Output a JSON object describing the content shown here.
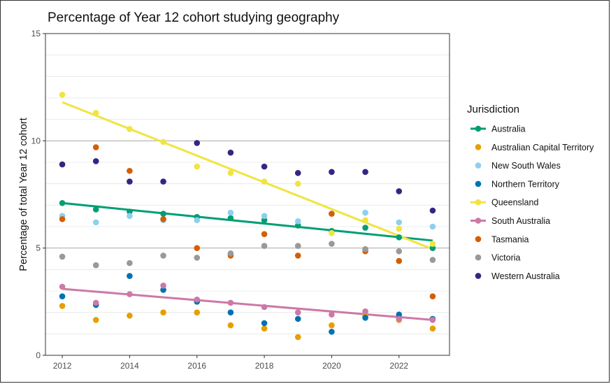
{
  "chart_data": {
    "type": "scatter",
    "title": "Percentage of Year 12 cohort studying geography",
    "xlabel": "",
    "ylabel": "Percentage of total Year 12 cohort",
    "xlim": [
      2011.5,
      2023.5
    ],
    "ylim": [
      0,
      15
    ],
    "x_ticks": [
      2012,
      2014,
      2016,
      2018,
      2020,
      2022
    ],
    "y_ticks": [
      0,
      5,
      10,
      15
    ],
    "grid": true,
    "legend_title": "Jurisdiction",
    "legend_position": "right",
    "x": [
      2012,
      2013,
      2014,
      2015,
      2016,
      2017,
      2018,
      2019,
      2020,
      2021,
      2022,
      2023
    ],
    "series": [
      {
        "name": "Australia",
        "color": "#009E73",
        "values": [
          7.1,
          6.8,
          6.7,
          6.6,
          6.45,
          6.4,
          6.3,
          6.05,
          5.8,
          5.95,
          5.5,
          5.0
        ],
        "trend": [
          7.1,
          5.35
        ]
      },
      {
        "name": "Australian Capital Territory",
        "color": "#E69F00",
        "values": [
          2.3,
          1.65,
          1.85,
          2.0,
          2.0,
          1.4,
          1.25,
          0.85,
          1.4,
          1.85,
          1.65,
          1.25
        ]
      },
      {
        "name": "New South Wales",
        "color": "#8ECFEF",
        "values": [
          6.5,
          6.2,
          6.5,
          6.3,
          6.3,
          6.65,
          6.5,
          6.25,
          6.6,
          6.65,
          6.2,
          6.0
        ]
      },
      {
        "name": "Northern Territory",
        "color": "#0072B2",
        "values": [
          2.75,
          2.35,
          3.7,
          3.05,
          2.5,
          2.0,
          1.5,
          1.7,
          1.1,
          1.75,
          1.9,
          1.7
        ]
      },
      {
        "name": "Queensland",
        "color": "#F0E442",
        "values": [
          12.15,
          11.3,
          10.55,
          9.95,
          8.8,
          8.5,
          8.1,
          8.0,
          5.7,
          6.3,
          5.9,
          5.2
        ],
        "trend": [
          11.8,
          4.95
        ]
      },
      {
        "name": "South Australia",
        "color": "#CC79A7",
        "values": [
          3.2,
          2.45,
          2.85,
          3.25,
          2.6,
          2.45,
          2.25,
          2.0,
          1.9,
          2.05,
          1.7,
          1.65
        ],
        "trend": [
          3.1,
          1.65
        ]
      },
      {
        "name": "Tasmania",
        "color": "#D55E00",
        "values": [
          6.35,
          9.7,
          8.6,
          6.35,
          5.0,
          4.65,
          5.65,
          4.65,
          6.6,
          4.85,
          4.4,
          2.75
        ]
      },
      {
        "name": "Victoria",
        "color": "#999999",
        "values": [
          4.6,
          4.2,
          4.3,
          4.65,
          4.55,
          4.75,
          5.1,
          5.1,
          5.2,
          4.95,
          4.85,
          4.45
        ]
      },
      {
        "name": "Western Australia",
        "color": "#312783",
        "values": [
          8.9,
          9.05,
          8.1,
          8.1,
          9.9,
          9.45,
          8.8,
          8.5,
          8.55,
          8.55,
          7.65,
          6.75
        ]
      }
    ]
  }
}
